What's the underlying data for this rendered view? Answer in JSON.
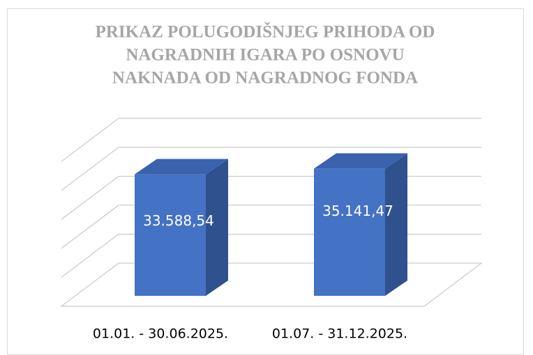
{
  "chart_data": {
    "type": "bar3d",
    "title": [
      "PRIKAZ POLUGODIŠNJEG PRIHODA OD",
      "NAGRADNIH IGARA PO OSNOVU",
      "NAKNADA OD NAGRADNOG FONDA"
    ],
    "categories": [
      "01.01. - 30.06.2025.",
      "01.07. - 31.12.2025."
    ],
    "values": [
      33588.54,
      35141.47
    ],
    "value_labels": [
      "33.588,54",
      "35.141,47"
    ],
    "color": "#4472c4",
    "ylim": [
      0,
      40000
    ],
    "yticks": [
      0,
      8000,
      16000,
      24000,
      32000,
      40000
    ],
    "grid": true
  }
}
